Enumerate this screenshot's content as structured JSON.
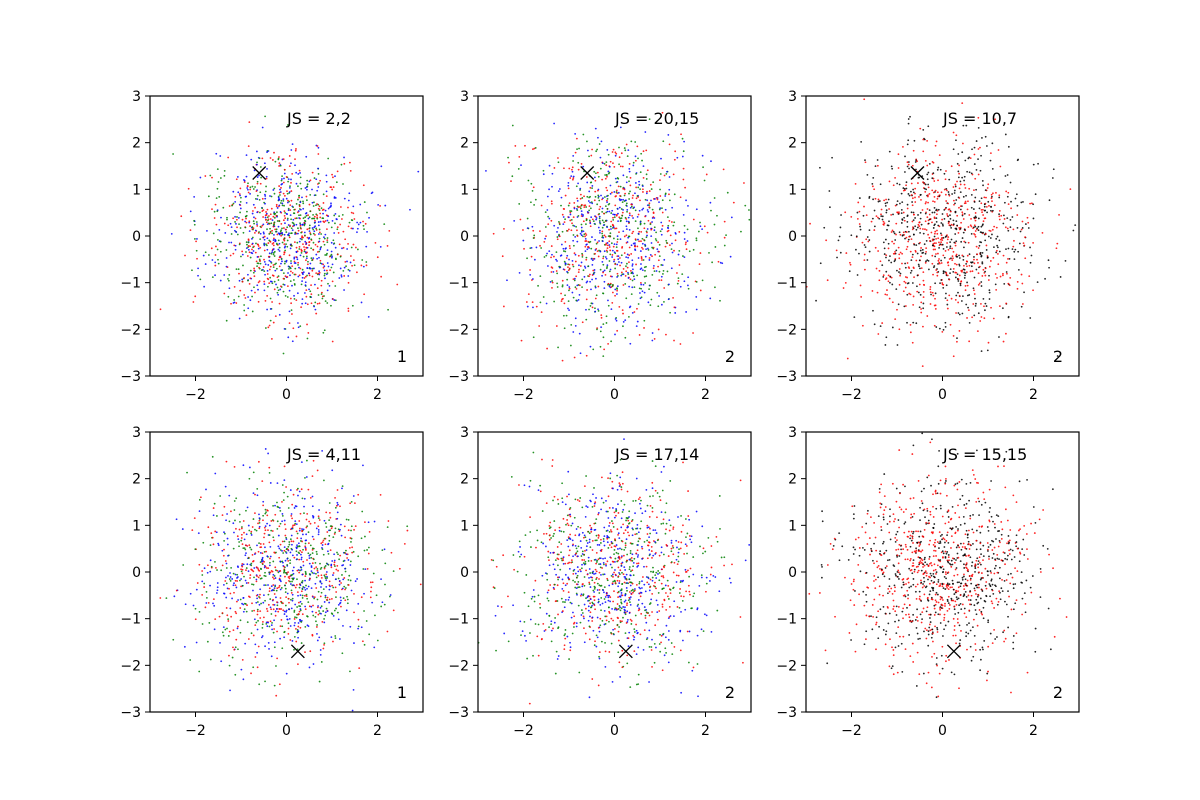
{
  "chart_data": [
    {
      "type": "scatter",
      "panel": "row-1-col-1",
      "xlim": [
        -3,
        3
      ],
      "ylim": [
        -3,
        3
      ],
      "x_ticks": [
        -2,
        0,
        2
      ],
      "y_ticks": [
        -3,
        -2,
        -1,
        0,
        1,
        2,
        3
      ],
      "x_tick_labels": [
        "−2",
        "0",
        "2"
      ],
      "y_tick_labels": [
        "−3",
        "−2",
        "−1",
        "0",
        "1",
        "2",
        "3"
      ],
      "annotation_top": "JS = 2,2",
      "annotation_corner": "1",
      "marker": {
        "symbol": "x",
        "x": -0.6,
        "y": 1.35
      },
      "point_cloud": {
        "center": [
          0,
          0
        ],
        "std": [
          0.85,
          0.85
        ],
        "series_colors": [
          "#0000ff",
          "#ff0000",
          "#008000"
        ],
        "points_per_series": 420
      },
      "grid": false,
      "legend": "none"
    },
    {
      "type": "scatter",
      "panel": "row-1-col-2",
      "xlim": [
        -3,
        3
      ],
      "ylim": [
        -3,
        3
      ],
      "x_ticks": [
        -2,
        0,
        2
      ],
      "y_ticks": [
        -3,
        -2,
        -1,
        0,
        1,
        2,
        3
      ],
      "x_tick_labels": [
        "−2",
        "0",
        "2"
      ],
      "y_tick_labels": [
        "−3",
        "−2",
        "−1",
        "0",
        "1",
        "2",
        "3"
      ],
      "annotation_top": "JS = 20,15",
      "annotation_corner": "2",
      "marker": {
        "symbol": "x",
        "x": -0.6,
        "y": 1.35
      },
      "point_cloud": {
        "center": [
          0,
          0
        ],
        "std": [
          1.0,
          1.0
        ],
        "series_colors": [
          "#0000ff",
          "#ff0000",
          "#008000"
        ],
        "points_per_series": 420
      },
      "grid": false,
      "legend": "none"
    },
    {
      "type": "scatter",
      "panel": "row-1-col-3",
      "xlim": [
        -3,
        3
      ],
      "ylim": [
        -3,
        3
      ],
      "x_ticks": [
        -2,
        0,
        2
      ],
      "y_ticks": [
        -3,
        -2,
        -1,
        0,
        1,
        2,
        3
      ],
      "x_tick_labels": [
        "−2",
        "0",
        "2"
      ],
      "y_tick_labels": [
        "−3",
        "−2",
        "−1",
        "0",
        "1",
        "2",
        "3"
      ],
      "annotation_top": "JS = 10,7",
      "annotation_corner": "2",
      "marker": {
        "symbol": "x",
        "x": -0.55,
        "y": 1.35
      },
      "point_cloud": {
        "center": [
          0,
          0
        ],
        "std": [
          1.0,
          1.0
        ],
        "series_colors": [
          "#ff0000",
          "#000000"
        ],
        "points_per_series": 600
      },
      "grid": false,
      "legend": "none"
    },
    {
      "type": "scatter",
      "panel": "row-2-col-1",
      "xlim": [
        -3,
        3
      ],
      "ylim": [
        -3,
        3
      ],
      "x_ticks": [
        -2,
        0,
        2
      ],
      "y_ticks": [
        -3,
        -2,
        -1,
        0,
        1,
        2,
        3
      ],
      "x_tick_labels": [
        "−2",
        "0",
        "2"
      ],
      "y_tick_labels": [
        "−3",
        "−2",
        "−1",
        "0",
        "1",
        "2",
        "3"
      ],
      "annotation_top": "JS = 4,11",
      "annotation_corner": "1",
      "marker": {
        "symbol": "x",
        "x": 0.25,
        "y": -1.7
      },
      "point_cloud": {
        "center": [
          0,
          0
        ],
        "std": [
          0.95,
          0.95
        ],
        "series_colors": [
          "#0000ff",
          "#ff0000",
          "#008000"
        ],
        "points_per_series": 420
      },
      "grid": false,
      "legend": "none"
    },
    {
      "type": "scatter",
      "panel": "row-2-col-2",
      "xlim": [
        -3,
        3
      ],
      "ylim": [
        -3,
        3
      ],
      "x_ticks": [
        -2,
        0,
        2
      ],
      "y_ticks": [
        -3,
        -2,
        -1,
        0,
        1,
        2,
        3
      ],
      "x_tick_labels": [
        "−2",
        "0",
        "2"
      ],
      "y_tick_labels": [
        "−3",
        "−2",
        "−1",
        "0",
        "1",
        "2",
        "3"
      ],
      "annotation_top": "JS = 17,14",
      "annotation_corner": "2",
      "marker": {
        "symbol": "x",
        "x": 0.25,
        "y": -1.7
      },
      "point_cloud": {
        "center": [
          0,
          0
        ],
        "std": [
          1.0,
          1.0
        ],
        "series_colors": [
          "#0000ff",
          "#ff0000",
          "#008000"
        ],
        "points_per_series": 420
      },
      "grid": false,
      "legend": "none"
    },
    {
      "type": "scatter",
      "panel": "row-2-col-3",
      "xlim": [
        -3,
        3
      ],
      "ylim": [
        -3,
        3
      ],
      "x_ticks": [
        -2,
        0,
        2
      ],
      "y_ticks": [
        -3,
        -2,
        -1,
        0,
        1,
        2,
        3
      ],
      "x_tick_labels": [
        "−2",
        "0",
        "2"
      ],
      "y_tick_labels": [
        "−3",
        "−2",
        "−1",
        "0",
        "1",
        "2",
        "3"
      ],
      "annotation_top": "JS = 15,15",
      "annotation_corner": "2",
      "marker": {
        "symbol": "x",
        "x": 0.25,
        "y": -1.7
      },
      "point_cloud": {
        "center": [
          0,
          0
        ],
        "std": [
          1.0,
          1.0
        ],
        "series_colors": [
          "#ff0000",
          "#000000"
        ],
        "points_per_series": 600
      },
      "grid": false,
      "legend": "none"
    }
  ]
}
